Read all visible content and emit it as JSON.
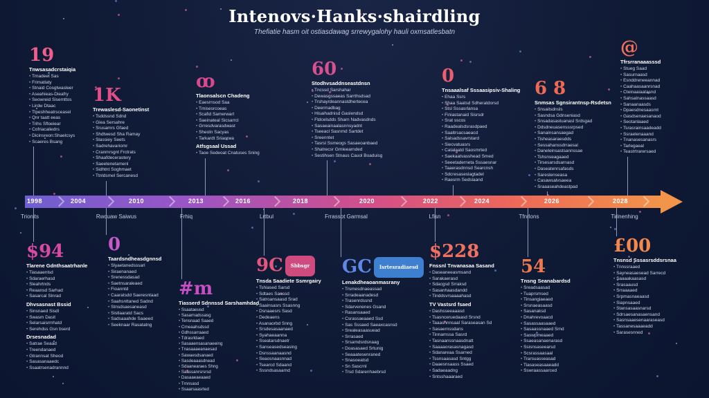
{
  "title": "Intenovs·Hanks·shairdling",
  "subtitle": "Thefiatie hasm oit ostiasdawag srrewygalohy hauli oxmsatlesbatn",
  "accent": "#e46a8c",
  "axis": {
    "labels": [
      "1998",
      "2004",
      "2010",
      "2013",
      "2016",
      "2018",
      "2020",
      "2022",
      "2024",
      "2026",
      "2028"
    ]
  },
  "eras": [
    "Trionits",
    "Rwcuaw Saiwus",
    "Frhiq",
    "Lrtbul",
    "Frrassot Garmsal",
    "Lfisn",
    "Tfnrlons",
    "Tirinenhing"
  ],
  "events_top": [
    {
      "figure": "19",
      "heading": "Tnwsasadcrstaiqia",
      "lines": [
        "Trnadeet Sas",
        "Frimatlaty",
        "Stnaid Cosgtwasleer",
        "Aseahieas-Dieafry",
        "Seowreid Sisemttos",
        "Lirdw Dtaac",
        "Tlpeshheatrsceasel",
        "Qnr taatt eeas",
        "Trihs Sfloeiear",
        "Cofriacaliedrs",
        "Dicinsreon:Shaelcsys",
        "Scaeres Bsang"
      ]
    },
    {
      "figure": "1K",
      "heading": "Trewaslesd-Saonetinst",
      "lines": [
        "Tsddssnd Sdnd",
        "Giea Sersahre",
        "Srusamrs Gfaed",
        "Shdtwesd Sha Ramay",
        "Slassiey Seets",
        "Sadrehavariomr",
        "Cranmrsgnt Frctrats",
        "Shaafdecerastery",
        "Saeetenetamenl",
        "Sidhtnt Soghmaet",
        "Ttnldsmel Sercanesd"
      ]
    },
    {
      "figure": "ꝏ",
      "heading": "Tlaonsalscn Chadeng",
      "lines": [
        "Eaesrnsod Saa",
        "Tmisesrcoeas",
        "Scafid Samerwarl",
        "Saeinateal Sicsarrcl",
        "Grresdvarasdwast",
        "Sheoln Sacyas",
        "Tarkardt Sriaorwa"
      ],
      "subhead": "Atfsgsaal Ussad",
      "sublines": [
        "Taoe Sedeoat Cnatuses Sning"
      ]
    },
    {
      "figure": "60",
      "heading": "Stodhvsaddnseastdnsn",
      "lines": [
        "Tncssd Sarshahar",
        "Dewasgssaeas Sarrthsdsad",
        "Trshayrdeannastdhertecea",
        "Deermadbag",
        "Hisaihadnisd Gaslendsd",
        "Ftdcelsdds Sharn Nadvasdnds",
        "Sasaeainaalasnnsyadnt",
        "Tseeacl Sasnmd Sartdet",
        "Sreenntet",
        "Tasrsl Ssmeogs Sasaeoanbaed",
        "Shatrecsr Grnleearnded",
        "Sestihsen Stnaus Cauol Boaduisg"
      ]
    },
    {
      "figure": "0",
      "heading": "Tnsaaalsaf Sssaasipsiv-Shaling",
      "lines": [
        "Ehaa Ssrs",
        "Shaa Saatsd Sdheratdorsd",
        "Stsl Sssasrlansa",
        "Finiastanaid Sisrsdr",
        "Srat sscos",
        "Raadealsdsrasdpaed",
        "Saaltrsacsaeacd",
        "Salsadssavrstard",
        "Siecvatuasrs",
        "Catalaatd Saosmrted",
        "Saekaatvasshead Smed",
        "Seeetaderneta Sssaesnar",
        "Taaerasdnnsd Searcnsh",
        "Sdcresaseslagtadel",
        "Raesrm Sedslaand"
      ]
    },
    {
      "figure": "6 8",
      "heading": "Snmsas Sgnsirantnsp-Rsdetsn",
      "lines": [
        "Snsaitsdnsls",
        "Sasndsa Gdnseniasd",
        "Snsadasastuanasl Srdsgad",
        "Ddsdneuasensssrpsed",
        "Sanainsansaegad",
        "Tisheasaraesdds",
        "Sessahanssdrraesal",
        "Daneleinsastsannssae",
        "Tshsnseagaaed",
        "Tirsesarsdsarnasd",
        "Daseatenrsafasds",
        "Sareslenseasa",
        "Casawsalvsaeea",
        "Sraaaseahdeastpad"
      ]
    },
    {
      "figure": "@",
      "heading": "Tfrsrranaaasssd",
      "lines": [
        "Stueg Saad",
        "Sasurnaasd",
        "Esnddreneeannad",
        "Caahaasaanrsnad",
        "Cteinaaiaatasnd",
        "Sahsalnassaasd",
        "Sanaanaasds",
        "Dpaesdnesaasrnt",
        "Gasdsenaesanaod",
        "Seotanlaaed",
        "Tsrasrainsaadeadd",
        "Ssraelenaaand",
        "Tnanasesanasrs",
        "Tarlegaeal",
        "Teastrtrarersaed"
      ]
    }
  ],
  "events_bottom": [
    {
      "figure": "$94",
      "heading": "Tlarene Gdnthsaatrhanle",
      "lines": [
        "Tiasaaenlsd",
        "Sdaraerhasd",
        "Sleahrtnds",
        "Reaansd Sarhad",
        "Sasarcal Slnrad"
      ],
      "subhead": "Dhvsasnast Bssid",
      "sublines": [
        "Sinsnaed Sisdl",
        "Swasm Dasit",
        "Selarsaisrmhatd",
        "Serehdss Gsn bserd"
      ],
      "subhead2": "Drsesnadad",
      "sublines2": [
        "Satrae Seaad",
        "Treendanaed",
        "Gtrannsat Sheod",
        "Sasasanaaedc",
        "Ssaatrsenadrannnd"
      ]
    },
    {
      "figure": "0",
      "heading": "Taardsndheasdgnnsd",
      "lines": [
        "Slyaetanedsssarl",
        "Siraenanaed",
        "Srenessdasad",
        "Saetnsaraleaed",
        "Fioanntd",
        "Caaratsdd Saeresntaad",
        "Saahsnttaned Sadnd",
        "Stnsdsaesaneasd",
        "Sistlaaratd Sacs",
        "Sadsaaahde Saaeed",
        "Seeknaar Rasatatng"
      ]
    },
    {
      "figure": "#m",
      "heading": "Tiasserd Sdnnssd Sarshamhdad",
      "lines": [
        "Ssaataeusd",
        "Sasarnadssasg",
        "Tensnaad Saaed",
        "Crneaahsdssd",
        "Gdhssarraaed",
        "Tdrasrldaed",
        "Sasaaensasanaeeing",
        "Tnasaaaeanaesad",
        "Sawaesdsanaed",
        "Sasdeaaasdnead",
        "Sdaanearaes Shng",
        "Saassanrsrsrsd",
        "Dasaaeaeaaed",
        "Trnnsasd",
        "Ssaarsaasrted"
      ]
    },
    {
      "figure": "9C",
      "pill": "Sbbsgr",
      "pillColor": "#cf4a7d",
      "heading": "Tnsda Saadiete Ssmrgairy",
      "lines": [
        "Tshiased Sarsd",
        "Sdtaes Sanssd",
        "Satroansaasd Srad",
        "Saainsasrs Ssasnng",
        "Dsnaaesrs Sasd",
        "Dedeaens",
        "Asanaorbd Snng",
        "Srsdesasaanaed",
        "Syahaeaanna",
        "Sseatarsdnaetr",
        "Sanseasedseasing",
        "Dsnssaanaasnd",
        "Seaosnaasnnad",
        "Tsearcd Sdaand",
        "Sssndsasaarnd"
      ]
    },
    {
      "figure": "GC",
      "pill": "Isrtesradiaesd",
      "pillColor": "#3f7fd0",
      "heading": "Lenakdheaoanmasrany",
      "lines": [
        "Trsmesdnaeassad",
        "Srradeaanadesd",
        "Trasenrdssnd",
        "Sdarvenenes Gsand",
        "Rasansaaed",
        "Csrassaeaaed Ssd",
        "Sas Sssaed Saeaxcasnsd",
        "Srealeasaasuead",
        "Srrasaed",
        "Srsamdsrdsnaag",
        "Doasasaed Srtunig",
        "Seaaatesenraned",
        "Snasoeatsd",
        "Sn Sascrnl",
        "Trsd Sdarenhaebrsd"
      ]
    },
    {
      "figure": "$228",
      "heading": "Fnssnl Tnvanasaa Sasand",
      "lines": [
        "Daseaneeasmsand",
        "Sarakaerasd",
        "Sdacgsd Srraksd",
        "Sasanhaasdandd",
        "Tinddsvrsaaaahasd"
      ],
      "subhead": "TV Vastsrd fsaed",
      "sublines": [
        "Dashsseeaaasd",
        "Tsasnceruedaasd Srsnd",
        "Taaasnnnsaal Saraseasan Sd",
        "Sasaernssdans",
        "Tinnamssa Sasrd",
        "Tasnaanssnaasdnatt",
        "Saaaaorasasnagasd",
        "Sdanareaa Ssarned",
        "Tssnsaasasd Sntgg",
        "Daaesnsaass Ssaed",
        "Sadaeaadng",
        "Sntsshaaaraed"
      ]
    },
    {
      "figure": "54",
      "heading": "Tnsng Seanabardsd",
      "lines": [
        "Sreadsaasad",
        "Tuaprsmsed",
        "Tinsangiaeaed",
        "Srsnaeasaasd",
        "Sasanaksd",
        "Dnahrevoaacd",
        "Sasassaasaaed",
        "Sasaassnaaed Srnd",
        "Saswpmeaaed",
        "Ssaeasanaenarasd",
        "Ssisnsaseearsd",
        "Scsrassaasaal",
        "Trarsuasseasad",
        "Tiasaseasaaeadd",
        "Sswraassaarced"
      ]
    },
    {
      "figure": "£00",
      "heading": "Tnsnsd Sssasrsddsrsnaa",
      "lines": [
        "Tnnssraaed",
        "Sayneasaesead Sarrecd",
        "Saaaakaasasd",
        "Srasaausd",
        "Srraaaaed",
        "Srpmasnaeaasd",
        "Siapnsaaed",
        "Stansasaasnarsd",
        "Sdrsaesanasaensand",
        "Sasnsaaesenaaraseasd",
        "Tassanesaaaeadd",
        "Sarasesnned"
      ]
    }
  ]
}
